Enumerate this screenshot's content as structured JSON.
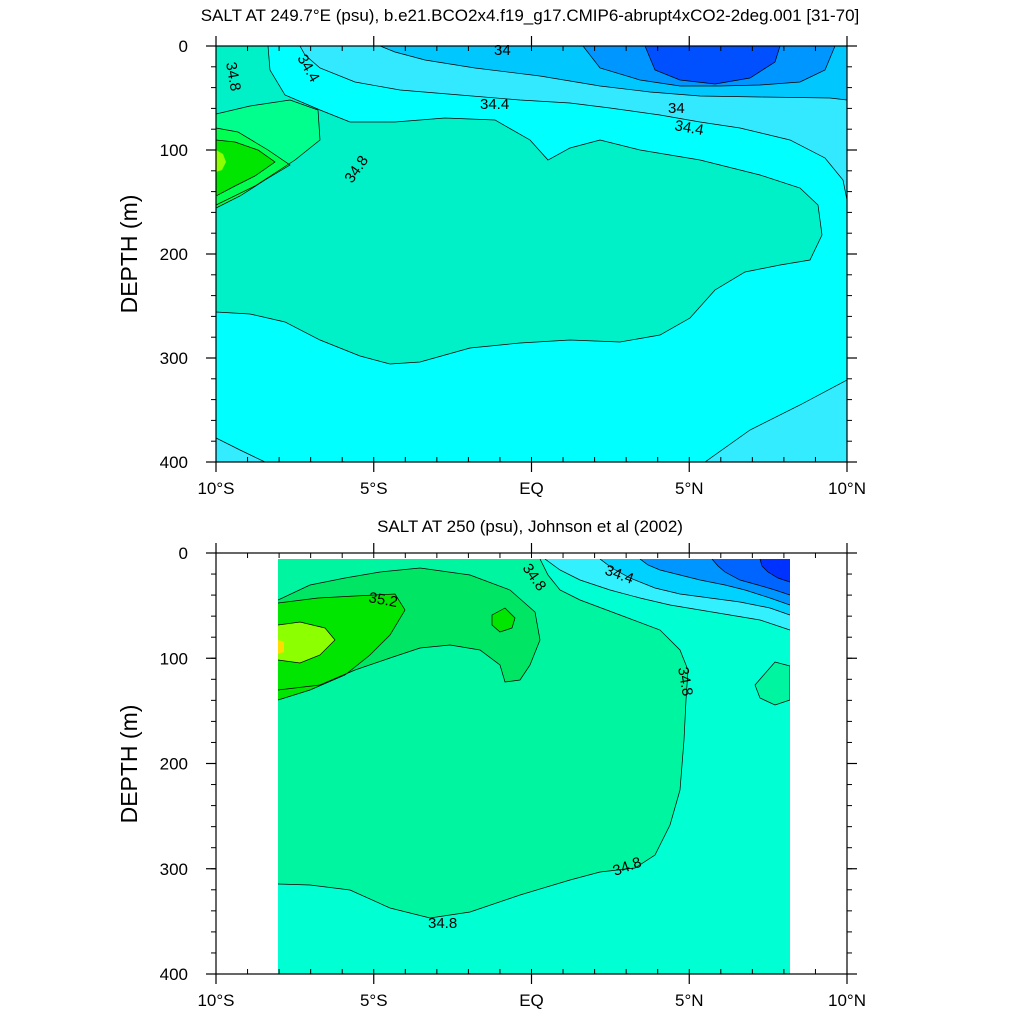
{
  "chart_data": [
    {
      "type": "contour",
      "title": "SALT AT 249.7°E (psu), b.e21.BCO2x4.f19_g17.CMIP6-abrupt4xCO2-2deg.001 [31-70]",
      "ylabel": "DEPTH (m)",
      "x_ticks": [
        "10°S",
        "5°S",
        "EQ",
        "5°N",
        "10°N"
      ],
      "x_tick_values": [
        -10,
        -5,
        0,
        5,
        10
      ],
      "y_ticks": [
        "0",
        "100",
        "200",
        "300",
        "400"
      ],
      "y_tick_values": [
        0,
        100,
        200,
        300,
        400
      ],
      "xlim": [
        -10,
        10
      ],
      "ylim": [
        400,
        0
      ],
      "contour_interval": 0.2,
      "contour_labels": [
        "34.8",
        "34.4",
        "34",
        "34.4",
        "34",
        "34.4",
        "34.8"
      ]
    },
    {
      "type": "contour",
      "title": "SALT AT 250 (psu), Johnson et al (2002)",
      "ylabel": "DEPTH (m)",
      "x_ticks": [
        "10°S",
        "5°S",
        "EQ",
        "5°N",
        "10°N"
      ],
      "x_tick_values": [
        -10,
        -5,
        0,
        5,
        10
      ],
      "y_ticks": [
        "0",
        "100",
        "200",
        "300",
        "400"
      ],
      "y_tick_values": [
        0,
        100,
        200,
        300,
        400
      ],
      "xlim": [
        -10,
        10
      ],
      "ylim": [
        400,
        0
      ],
      "data_extent_lon": [
        -8,
        8.2
      ],
      "data_extent_depth": [
        5,
        400
      ],
      "contour_interval": 0.2,
      "contour_labels": [
        "35.2",
        "34.8",
        "34.4",
        "34.8",
        "34.8",
        "34.8"
      ]
    }
  ]
}
